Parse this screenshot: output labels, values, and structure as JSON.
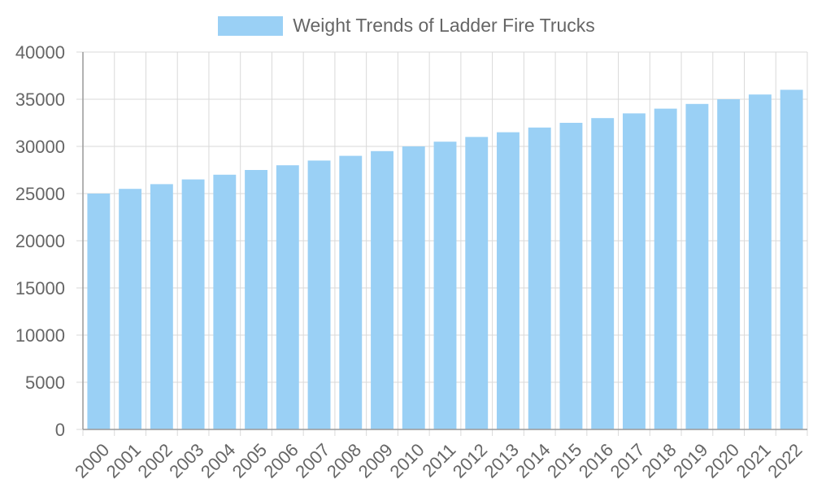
{
  "chart_data": {
    "type": "bar",
    "categories": [
      "2000",
      "2001",
      "2002",
      "2003",
      "2004",
      "2005",
      "2006",
      "2007",
      "2008",
      "2009",
      "2010",
      "2011",
      "2012",
      "2013",
      "2014",
      "2015",
      "2016",
      "2017",
      "2018",
      "2019",
      "2020",
      "2021",
      "2022"
    ],
    "series": [
      {
        "name": "Weight Trends of Ladder Fire Trucks",
        "values": [
          25000,
          25500,
          26000,
          26500,
          27000,
          27500,
          28000,
          28500,
          29000,
          29500,
          30000,
          30500,
          31000,
          31500,
          32000,
          32500,
          33000,
          33500,
          34000,
          34500,
          35000,
          35500,
          36000
        ]
      }
    ],
    "title": "",
    "xlabel": "",
    "ylabel": "",
    "ylim": [
      0,
      40000
    ],
    "yticks": [
      0,
      5000,
      10000,
      15000,
      20000,
      25000,
      30000,
      35000,
      40000
    ],
    "grid": true,
    "legend_position": "top-center",
    "colors": {
      "bar_fill": "#9ad0f5",
      "grid": "#d9d9d9",
      "axis": "#999999",
      "text": "#666666"
    }
  }
}
